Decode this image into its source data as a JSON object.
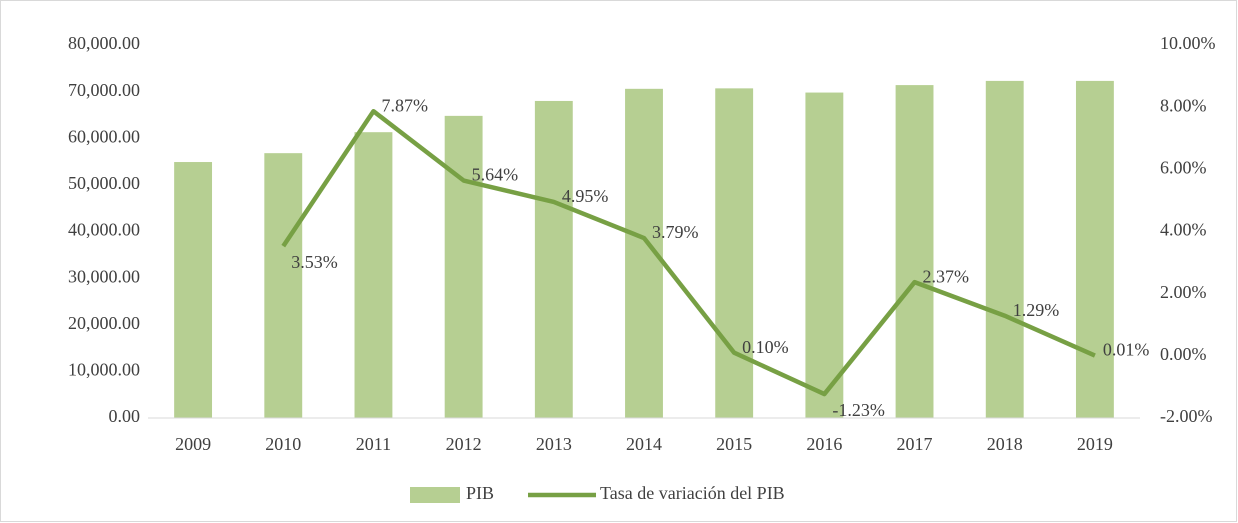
{
  "chart_data": {
    "type": "bar_line",
    "categories": [
      "2009",
      "2010",
      "2011",
      "2012",
      "2013",
      "2014",
      "2015",
      "2016",
      "2017",
      "2018",
      "2019"
    ],
    "series": [
      {
        "name": "PIB",
        "type": "bar",
        "color": "#b6cf92",
        "values": [
          54900,
          56800,
          61300,
          64800,
          68000,
          70600,
          70700,
          69800,
          71400,
          72300,
          72300
        ]
      },
      {
        "name": "Tasa de variación del PIB",
        "type": "line",
        "axis": "y2",
        "color": "#77a044",
        "values": [
          null,
          3.53,
          7.87,
          5.64,
          4.95,
          3.79,
          0.1,
          -1.23,
          2.37,
          1.29,
          0.01
        ],
        "value_labels": [
          null,
          "3.53%",
          "7.87%",
          "5.64%",
          "4.95%",
          "3.79%",
          "0.10%",
          "-1.23%",
          "2.37%",
          "1.29%",
          "0.01%"
        ]
      }
    ],
    "ylim": [
      0,
      80000
    ],
    "yticks": [
      {
        "value": 0,
        "label": "0.00"
      },
      {
        "value": 10000,
        "label": "10,000.00"
      },
      {
        "value": 20000,
        "label": "20,000.00"
      },
      {
        "value": 30000,
        "label": "30,000.00"
      },
      {
        "value": 40000,
        "label": "40,000.00"
      },
      {
        "value": 50000,
        "label": "50,000.00"
      },
      {
        "value": 60000,
        "label": "60,000.00"
      },
      {
        "value": 70000,
        "label": "70,000.00"
      },
      {
        "value": 80000,
        "label": "80,000.00"
      }
    ],
    "y2lim": [
      -2,
      10
    ],
    "y2ticks": [
      {
        "value": -2,
        "label": "-2.00%"
      },
      {
        "value": 0,
        "label": "0.00%"
      },
      {
        "value": 2,
        "label": "2.00%"
      },
      {
        "value": 4,
        "label": "4.00%"
      },
      {
        "value": 6,
        "label": "6.00%"
      },
      {
        "value": 8,
        "label": "8.00%"
      },
      {
        "value": 10,
        "label": "10.00%"
      }
    ],
    "legend": "bottom"
  }
}
